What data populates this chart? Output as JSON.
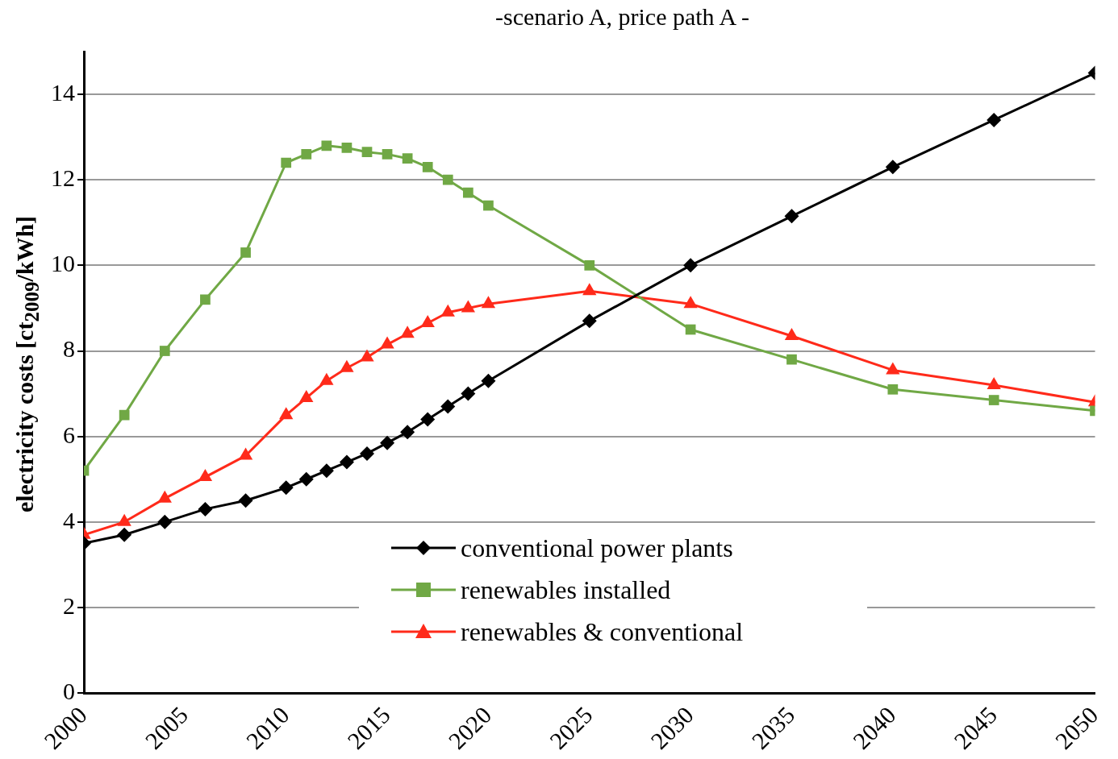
{
  "chart_data": {
    "type": "line",
    "title": "-scenario A, price path A -",
    "ylabel": "electricity costs [ct$_{2009}$/kWh]",
    "xlim": [
      2000,
      2050
    ],
    "xticks": [
      2000,
      2005,
      2010,
      2015,
      2020,
      2025,
      2030,
      2035,
      2040,
      2045,
      2050
    ],
    "ylim": [
      0,
      15
    ],
    "yticks": [
      0,
      2,
      4,
      6,
      8,
      10,
      12,
      14
    ],
    "grid": "y",
    "legend": "bottom",
    "line_style": "solid",
    "series": [
      {
        "name": "conventional power plants",
        "color": "#000000",
        "marker": "diamond",
        "x": [
          2000,
          2002,
          2004,
          2006,
          2008,
          2010,
          2011,
          2012,
          2013,
          2014,
          2015,
          2016,
          2017,
          2018,
          2019,
          2020,
          2025,
          2030,
          2035,
          2040,
          2045,
          2050
        ],
        "values": [
          3.5,
          3.7,
          4.0,
          4.3,
          4.5,
          4.8,
          5.0,
          5.2,
          5.4,
          5.6,
          5.85,
          6.1,
          6.4,
          6.7,
          7.0,
          7.3,
          8.7,
          10.0,
          11.15,
          12.3,
          13.4,
          14.5
        ]
      },
      {
        "name": "renewables installed",
        "color": "#70a845",
        "marker": "square",
        "x": [
          2000,
          2002,
          2004,
          2006,
          2008,
          2010,
          2011,
          2012,
          2013,
          2014,
          2015,
          2016,
          2017,
          2018,
          2019,
          2020,
          2025,
          2030,
          2035,
          2040,
          2045,
          2050
        ],
        "values": [
          5.2,
          6.5,
          8.0,
          9.2,
          10.3,
          12.4,
          12.6,
          12.8,
          12.75,
          12.65,
          12.6,
          12.5,
          12.3,
          12.0,
          11.7,
          11.4,
          10.0,
          8.5,
          7.8,
          7.1,
          6.85,
          6.6
        ]
      },
      {
        "name": "renewables & conventional",
        "color": "#ff2a1a",
        "marker": "triangle",
        "x": [
          2000,
          2002,
          2004,
          2006,
          2008,
          2010,
          2011,
          2012,
          2013,
          2014,
          2015,
          2016,
          2017,
          2018,
          2019,
          2020,
          2025,
          2030,
          2035,
          2040,
          2045,
          2050
        ],
        "values": [
          3.7,
          4.0,
          4.55,
          5.05,
          5.55,
          6.5,
          6.9,
          7.3,
          7.6,
          7.85,
          8.15,
          8.4,
          8.65,
          8.9,
          9.0,
          9.1,
          9.4,
          9.1,
          8.35,
          7.55,
          7.2,
          6.8
        ]
      }
    ]
  }
}
